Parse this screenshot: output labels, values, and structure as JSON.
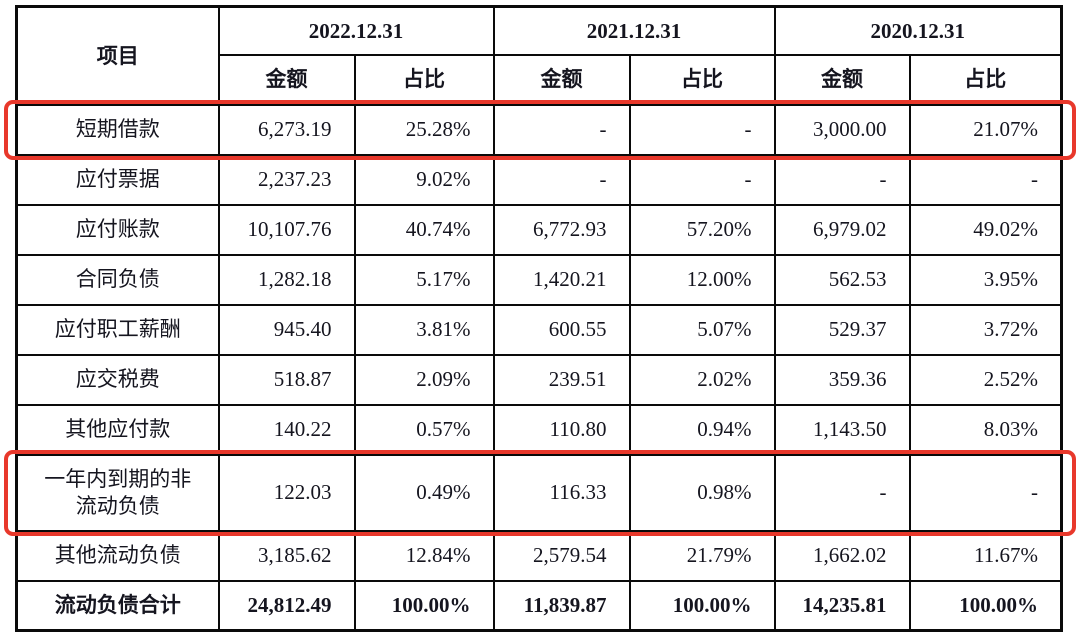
{
  "table": {
    "header": {
      "item_label": "项目",
      "periods": [
        "2022.12.31",
        "2021.12.31",
        "2020.12.31"
      ],
      "amount_label": "金额",
      "ratio_label": "占比"
    },
    "rows": [
      {
        "item": "短期借款",
        "cells": [
          "6,273.19",
          "25.28%",
          "-",
          "-",
          "3,000.00",
          "21.07%"
        ],
        "highlighted": true,
        "bold": false
      },
      {
        "item": "应付票据",
        "cells": [
          "2,237.23",
          "9.02%",
          "-",
          "-",
          "-",
          "-"
        ],
        "highlighted": false,
        "bold": false
      },
      {
        "item": "应付账款",
        "cells": [
          "10,107.76",
          "40.74%",
          "6,772.93",
          "57.20%",
          "6,979.02",
          "49.02%"
        ],
        "highlighted": false,
        "bold": false
      },
      {
        "item": "合同负债",
        "cells": [
          "1,282.18",
          "5.17%",
          "1,420.21",
          "12.00%",
          "562.53",
          "3.95%"
        ],
        "highlighted": false,
        "bold": false
      },
      {
        "item": "应付职工薪酬",
        "cells": [
          "945.40",
          "3.81%",
          "600.55",
          "5.07%",
          "529.37",
          "3.72%"
        ],
        "highlighted": false,
        "bold": false
      },
      {
        "item": "应交税费",
        "cells": [
          "518.87",
          "2.09%",
          "239.51",
          "2.02%",
          "359.36",
          "2.52%"
        ],
        "highlighted": false,
        "bold": false
      },
      {
        "item": "其他应付款",
        "cells": [
          "140.22",
          "0.57%",
          "110.80",
          "0.94%",
          "1,143.50",
          "8.03%"
        ],
        "highlighted": false,
        "bold": false
      },
      {
        "item": "一年内到期的非流动负债",
        "cells": [
          "122.03",
          "0.49%",
          "116.33",
          "0.98%",
          "-",
          "-"
        ],
        "highlighted": true,
        "bold": false,
        "tall": true
      },
      {
        "item": "其他流动负债",
        "cells": [
          "3,185.62",
          "12.84%",
          "2,579.54",
          "21.79%",
          "1,662.02",
          "11.67%"
        ],
        "highlighted": false,
        "bold": false
      },
      {
        "item": "流动负债合计",
        "cells": [
          "24,812.49",
          "100.00%",
          "11,839.87",
          "100.00%",
          "14,235.81",
          "100.00%"
        ],
        "highlighted": false,
        "bold": true
      }
    ],
    "highlight_color": "#e8382b"
  }
}
